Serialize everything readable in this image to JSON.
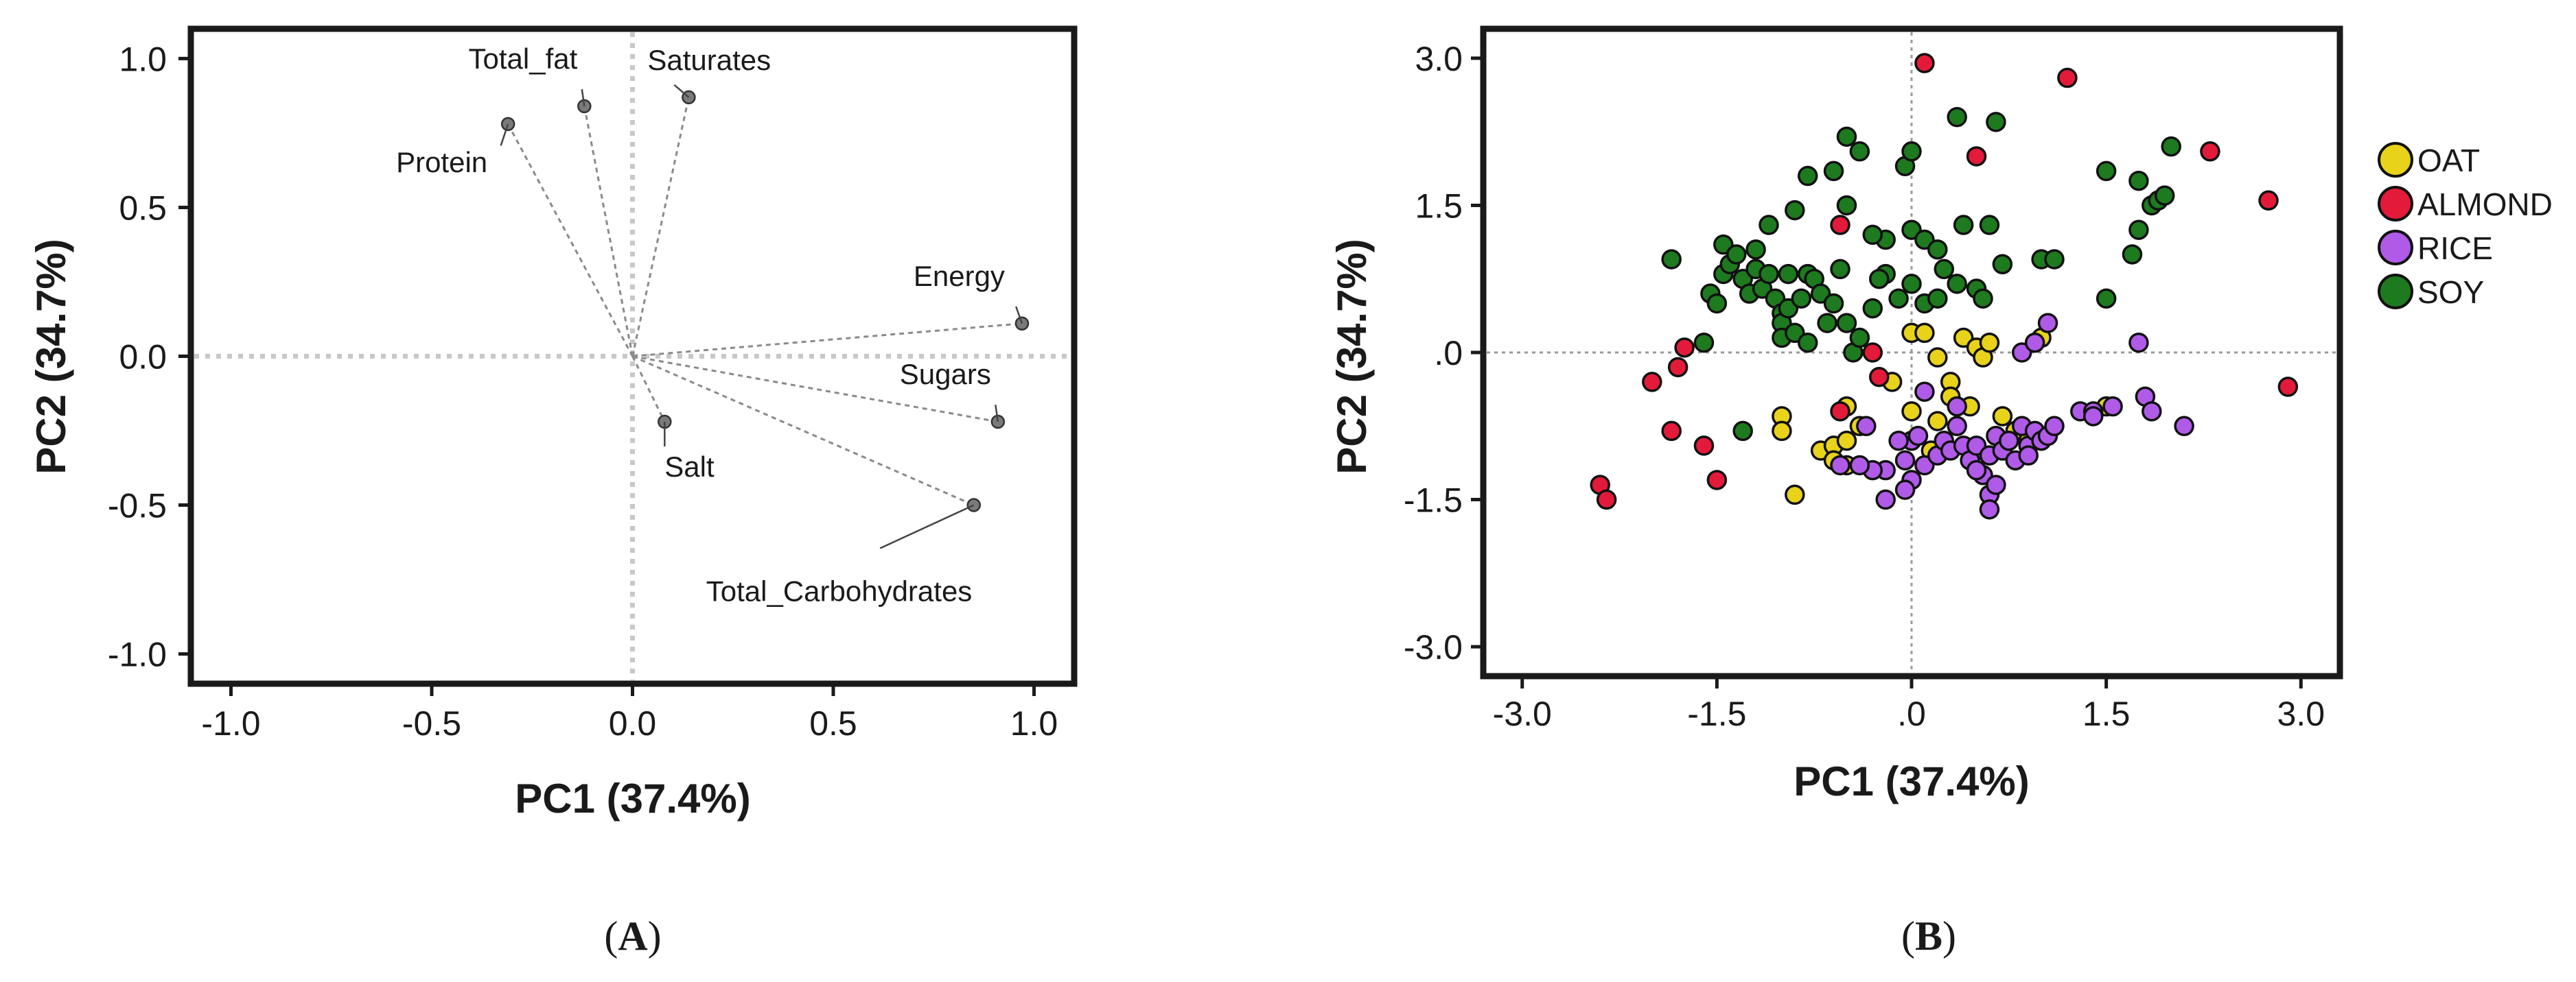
{
  "chart_data": [
    {
      "type": "scatter",
      "subtype": "loading-plot",
      "panel_label": {
        "open": "(",
        "letter": "A",
        "close": ")"
      },
      "xlabel": "PC1 (37.4%)",
      "ylabel": "PC2 (34.7%)",
      "xlim": [
        -1.1,
        1.1
      ],
      "ylim": [
        -1.1,
        1.1
      ],
      "xticks": [
        -1.0,
        -0.5,
        0.0,
        0.5,
        1.0
      ],
      "xtick_labels": [
        "-1.0",
        "-0.5",
        "0.0",
        "0.5",
        "1.0"
      ],
      "yticks": [
        -1.0,
        -0.5,
        0.0,
        0.5,
        1.0
      ],
      "ytick_labels": [
        "-1.0",
        "-0.5",
        "0.0",
        "0.5",
        "1.0"
      ],
      "grid": false,
      "reference_lines": [
        0,
        0
      ],
      "points": [
        {
          "name": "Total_fat",
          "x": -0.12,
          "y": 0.84
        },
        {
          "name": "Saturates",
          "x": 0.14,
          "y": 0.87
        },
        {
          "name": "Protein",
          "x": -0.31,
          "y": 0.78
        },
        {
          "name": "Energy",
          "x": 0.97,
          "y": 0.11
        },
        {
          "name": "Sugars",
          "x": 0.91,
          "y": -0.22
        },
        {
          "name": "Salt",
          "x": 0.08,
          "y": -0.22
        },
        {
          "name": "Total_Carbohydrates",
          "x": 0.85,
          "y": -0.5
        }
      ]
    },
    {
      "type": "scatter",
      "subtype": "score-plot",
      "panel_label": {
        "open": "(",
        "letter": "B",
        "close": ")"
      },
      "xlabel": "PC1 (37.4%)",
      "ylabel": "PC2 (34.7%)",
      "xlim": [
        -3.3,
        3.3
      ],
      "ylim": [
        -3.3,
        3.3
      ],
      "xticks": [
        -3.0,
        -1.5,
        0.0,
        1.5,
        3.0
      ],
      "xtick_labels": [
        "-3.0",
        "-1.5",
        ".0",
        "1.5",
        "3.0"
      ],
      "yticks": [
        -3.0,
        -1.5,
        0.0,
        1.5,
        3.0
      ],
      "ytick_labels": [
        "-3.0",
        "-1.5",
        ".0",
        "1.5",
        "3.0"
      ],
      "grid": false,
      "reference_lines": [
        0,
        0
      ],
      "legend_position": "right",
      "series": [
        {
          "name": "OAT",
          "color": "#e8d21a",
          "points": [
            [
              -1.0,
              -0.65
            ],
            [
              -1.0,
              -0.8
            ],
            [
              -0.9,
              -1.45
            ],
            [
              -0.7,
              -1.0
            ],
            [
              -0.6,
              -0.95
            ],
            [
              -0.6,
              -1.1
            ],
            [
              -0.5,
              -0.9
            ],
            [
              -0.5,
              -1.15
            ],
            [
              -0.5,
              -0.55
            ],
            [
              -0.4,
              -0.75
            ],
            [
              -0.15,
              -0.3
            ],
            [
              0.0,
              -0.6
            ],
            [
              0.0,
              0.2
            ],
            [
              0.1,
              0.2
            ],
            [
              0.2,
              -0.05
            ],
            [
              0.2,
              -0.7
            ],
            [
              0.3,
              -0.3
            ],
            [
              0.3,
              -0.45
            ],
            [
              0.4,
              0.15
            ],
            [
              0.45,
              -0.55
            ],
            [
              0.5,
              0.05
            ],
            [
              0.55,
              -0.05
            ],
            [
              0.6,
              0.1
            ],
            [
              0.7,
              -0.65
            ],
            [
              0.8,
              -0.8
            ],
            [
              0.9,
              -0.9
            ],
            [
              0.95,
              0.1
            ],
            [
              1.0,
              0.15
            ],
            [
              1.5,
              -0.55
            ],
            [
              0.15,
              -1.0
            ]
          ]
        },
        {
          "name": "ALMOND",
          "color": "#e41a3a",
          "points": [
            [
              0.1,
              2.95
            ],
            [
              1.2,
              2.8
            ],
            [
              0.5,
              2.0
            ],
            [
              -0.55,
              1.3
            ],
            [
              -0.55,
              -0.6
            ],
            [
              -0.25,
              -0.25
            ],
            [
              -0.3,
              0.0
            ],
            [
              -1.5,
              -1.3
            ],
            [
              -1.6,
              -0.95
            ],
            [
              -2.0,
              -0.3
            ],
            [
              -2.4,
              -1.35
            ],
            [
              -2.35,
              -1.5
            ],
            [
              -1.85,
              -0.8
            ],
            [
              -1.8,
              -0.15
            ],
            [
              -1.75,
              0.05
            ],
            [
              2.3,
              2.05
            ],
            [
              2.75,
              1.55
            ],
            [
              2.9,
              -0.35
            ]
          ]
        },
        {
          "name": "RICE",
          "color": "#b05ae8",
          "points": [
            [
              -0.2,
              -1.2
            ],
            [
              -0.05,
              -1.1
            ],
            [
              0.0,
              -0.9
            ],
            [
              0.05,
              -0.85
            ],
            [
              0.1,
              -1.15
            ],
            [
              0.2,
              -1.05
            ],
            [
              0.25,
              -0.9
            ],
            [
              0.3,
              -1.0
            ],
            [
              0.35,
              -0.75
            ],
            [
              0.4,
              -0.95
            ],
            [
              0.45,
              -1.1
            ],
            [
              0.5,
              -0.95
            ],
            [
              0.55,
              -1.25
            ],
            [
              0.6,
              -1.05
            ],
            [
              0.65,
              -0.85
            ],
            [
              0.7,
              -1.0
            ],
            [
              0.75,
              -0.9
            ],
            [
              0.8,
              -1.1
            ],
            [
              0.85,
              -0.75
            ],
            [
              0.9,
              -0.95
            ],
            [
              0.95,
              -0.8
            ],
            [
              1.0,
              -0.9
            ],
            [
              1.05,
              -0.85
            ],
            [
              1.1,
              -0.75
            ],
            [
              1.3,
              -0.6
            ],
            [
              1.4,
              -0.6
            ],
            [
              1.75,
              0.1
            ],
            [
              1.8,
              -0.45
            ],
            [
              1.85,
              -0.6
            ],
            [
              2.1,
              -0.75
            ],
            [
              0.85,
              0.0
            ],
            [
              0.95,
              0.1
            ],
            [
              1.05,
              0.3
            ],
            [
              0.0,
              -1.3
            ],
            [
              -0.2,
              -1.5
            ],
            [
              -0.05,
              -1.4
            ],
            [
              -0.3,
              -1.2
            ],
            [
              -0.4,
              -1.15
            ],
            [
              0.6,
              -1.45
            ],
            [
              0.6,
              -1.6
            ],
            [
              0.65,
              -1.35
            ],
            [
              0.5,
              -1.2
            ],
            [
              -0.1,
              -0.9
            ],
            [
              -0.55,
              -1.15
            ],
            [
              -0.35,
              -0.75
            ],
            [
              0.1,
              -0.4
            ],
            [
              0.35,
              -0.55
            ],
            [
              0.9,
              -1.05
            ],
            [
              1.4,
              -0.65
            ],
            [
              1.55,
              -0.55
            ]
          ]
        },
        {
          "name": "SOY",
          "color": "#1e7a1e",
          "points": [
            [
              -1.55,
              0.6
            ],
            [
              -1.5,
              0.5
            ],
            [
              -1.45,
              0.8
            ],
            [
              -1.45,
              1.1
            ],
            [
              -1.4,
              0.9
            ],
            [
              -1.35,
              1.0
            ],
            [
              -1.3,
              0.75
            ],
            [
              -1.25,
              0.6
            ],
            [
              -1.2,
              0.85
            ],
            [
              -1.15,
              0.65
            ],
            [
              -1.1,
              0.8
            ],
            [
              -1.05,
              0.55
            ],
            [
              -1.0,
              0.4
            ],
            [
              -1.0,
              0.3
            ],
            [
              -1.0,
              0.15
            ],
            [
              -0.95,
              0.45
            ],
            [
              -0.9,
              0.2
            ],
            [
              -0.85,
              0.55
            ],
            [
              -0.8,
              0.8
            ],
            [
              -0.8,
              0.1
            ],
            [
              -0.75,
              0.75
            ],
            [
              -0.7,
              0.6
            ],
            [
              -0.65,
              0.3
            ],
            [
              -0.6,
              0.5
            ],
            [
              -0.55,
              0.85
            ],
            [
              -0.5,
              0.3
            ],
            [
              -0.45,
              0.0
            ],
            [
              -0.4,
              0.15
            ],
            [
              -0.3,
              0.45
            ],
            [
              -0.2,
              0.8
            ],
            [
              -0.1,
              0.55
            ],
            [
              0.0,
              0.7
            ],
            [
              0.1,
              0.5
            ],
            [
              0.2,
              0.55
            ],
            [
              0.25,
              0.85
            ],
            [
              0.35,
              0.7
            ],
            [
              0.5,
              0.65
            ],
            [
              0.55,
              0.55
            ],
            [
              0.0,
              1.25
            ],
            [
              0.1,
              1.15
            ],
            [
              0.2,
              1.05
            ],
            [
              0.4,
              1.3
            ],
            [
              0.6,
              1.3
            ],
            [
              0.7,
              0.9
            ],
            [
              -0.8,
              1.8
            ],
            [
              -0.6,
              1.85
            ],
            [
              -0.4,
              2.05
            ],
            [
              -0.5,
              2.2
            ],
            [
              -0.05,
              1.9
            ],
            [
              0.0,
              2.05
            ],
            [
              0.35,
              2.4
            ],
            [
              0.65,
              2.35
            ],
            [
              -1.6,
              0.1
            ],
            [
              -1.3,
              -0.8
            ],
            [
              -0.2,
              1.15
            ],
            [
              -0.3,
              1.2
            ],
            [
              -0.5,
              1.5
            ],
            [
              -0.9,
              1.45
            ],
            [
              -1.1,
              1.3
            ],
            [
              -1.2,
              1.05
            ],
            [
              1.5,
              0.55
            ],
            [
              1.7,
              1.0
            ],
            [
              1.75,
              1.25
            ],
            [
              1.85,
              1.5
            ],
            [
              1.9,
              1.55
            ],
            [
              1.95,
              1.6
            ],
            [
              2.0,
              2.1
            ],
            [
              1.5,
              1.85
            ],
            [
              1.75,
              1.75
            ],
            [
              1.0,
              0.95
            ],
            [
              1.1,
              0.95
            ],
            [
              -1.85,
              0.95
            ],
            [
              -0.95,
              0.8
            ],
            [
              -0.25,
              0.75
            ]
          ]
        }
      ]
    }
  ]
}
